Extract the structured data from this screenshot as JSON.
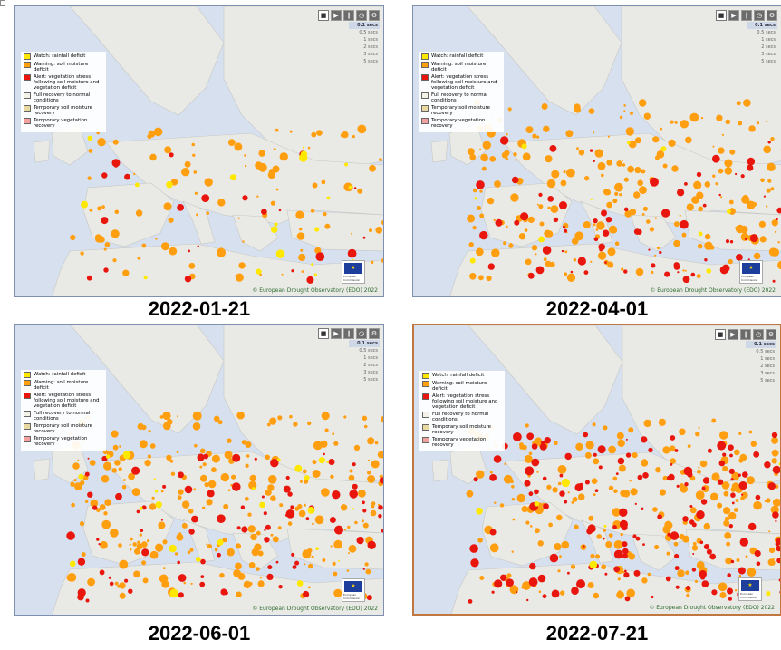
{
  "colors": {
    "sea": "#d6e0ef",
    "land": "#e9e9e6",
    "watch": "#ffe800",
    "warning": "#ff9f10",
    "alert": "#e8160c",
    "full_recovery": "#f4f2e6",
    "temp_soil": "#e8d9a0",
    "temp_veg": "#f2a0a0"
  },
  "legend": [
    {
      "label": "Watch: rainfall deficit",
      "swatch": "#ffe800"
    },
    {
      "label": "Warning: soil moisture deficit",
      "swatch": "#ff9f10"
    },
    {
      "label": "Alert: vegetation stress following soil moisture and vegetation deficit",
      "swatch": "#e8160c"
    },
    {
      "label": "Full recovery to normal conditions",
      "swatch": "#f4f2e6"
    },
    {
      "label": "Temporary soil moisture recovery",
      "swatch": "#e8d9a0"
    },
    {
      "label": "Temporary vegetation recovery",
      "swatch": "#f2a0a0"
    }
  ],
  "speed_options": [
    "0.1 secs",
    "0.5 secs",
    "1 secs",
    "2 secs",
    "3 secs",
    "5 secs"
  ],
  "toolbar_icons": [
    "stop-icon",
    "play-icon",
    "pause-icon",
    "clock-icon",
    "settings-icon"
  ],
  "logo_text": "European Commission",
  "credit": "© European Drought Observatory (EDO) 2022",
  "panels": [
    {
      "date": "2022-01-21",
      "warning": 0.25,
      "alert": 0.08,
      "watch": 0.1,
      "selected": false
    },
    {
      "date": "2022-04-01",
      "warning": 0.55,
      "alert": 0.25,
      "watch": 0.05,
      "selected": false
    },
    {
      "date": "2022-06-01",
      "warning": 0.6,
      "alert": 0.3,
      "watch": 0.12,
      "selected": false
    },
    {
      "date": "2022-07-21",
      "warning": 0.55,
      "alert": 0.55,
      "watch": 0.04,
      "selected": true
    }
  ]
}
